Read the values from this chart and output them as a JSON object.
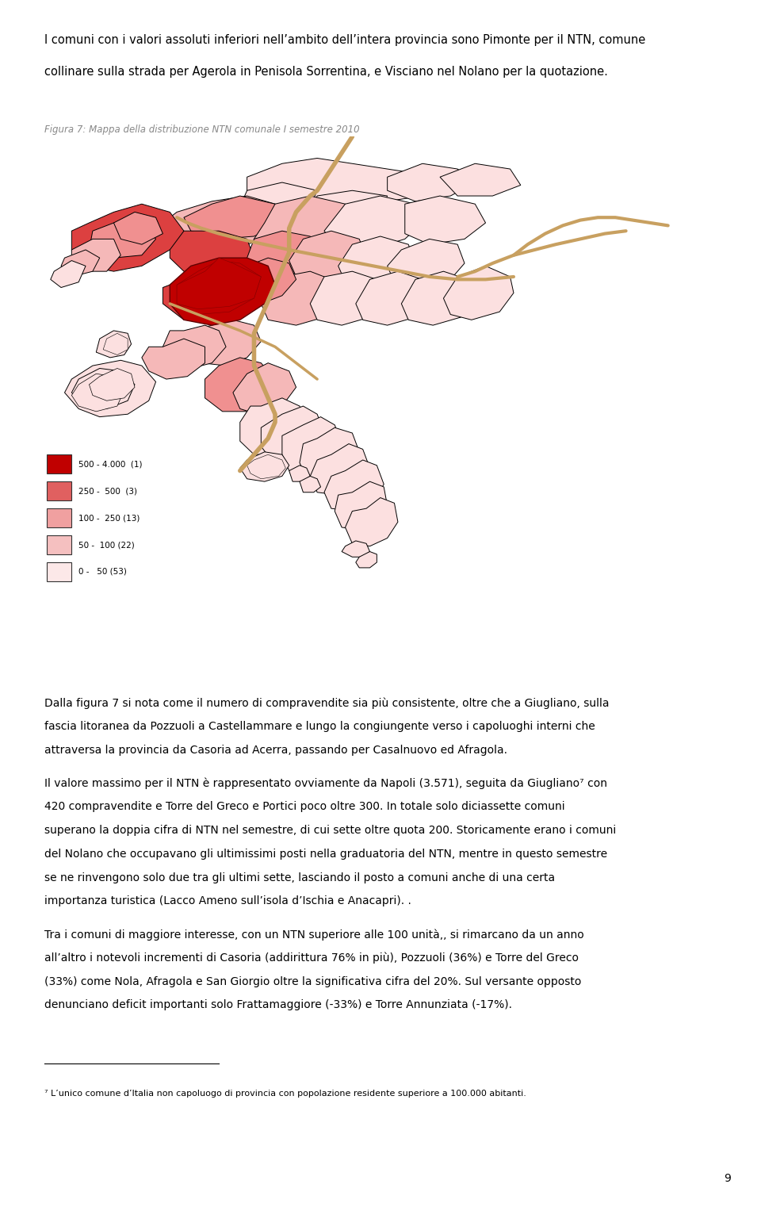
{
  "page_bg": "#ffffff",
  "line1": "I comuni con i valori assoluti inferiori nell’ambito dell’intera provincia sono Pimonte per il NTN, comune",
  "line2": "collinare sulla strada per Agerola in Penisola Sorrentina, e Visciano nel Nolano per la quotazione.",
  "figure_caption": "Figura 7: Mappa della distribuzione NTN comunale I semestre 2010",
  "legend_items": [
    {
      "range": "500 - 4.000  (1)",
      "color": "#c00000"
    },
    {
      "range": "250 -  500  (3)",
      "color": "#e06060"
    },
    {
      "range": "100 -  250 (13)",
      "color": "#f0a0a0"
    },
    {
      "range": "50 -  100 (22)",
      "color": "#f5c0c0"
    },
    {
      "range": "0 -   50 (53)",
      "color": "#fce8e8"
    }
  ],
  "p1_lines": [
    "Dalla figura 7 si nota come il numero di compravendite sia più consistente, oltre che a Giugliano, sulla",
    "fascia litoranea da Pozzuoli a Castellammare e lungo la congiungente verso i capoluoghi interni che",
    "attraversa la provincia da Casoria ad Acerra, passando per Casalnuovo ed Afragola."
  ],
  "p2_lines": [
    "Il valore massimo per il NTN è rappresentato ovviamente da Napoli (3.571), seguita da Giugliano⁷ con",
    "420 compravendite e Torre del Greco e Portici poco oltre 300. In totale solo diciassette comuni",
    "superano la doppia cifra di NTN nel semestre, di cui sette oltre quota 200. Storicamente erano i comuni",
    "del Nolano che occupavano gli ultimissimi posti nella graduatoria del NTN, mentre in questo semestre",
    "se ne rinvengono solo due tra gli ultimi sette, lasciando il posto a comuni anche di una certa",
    "importanza turistica (Lacco Ameno sull’isola d’Ischia e Anacapri). ."
  ],
  "p3_lines": [
    "Tra i comuni di maggiore interesse, con un NTN superiore alle 100 unità,, si rimarcano da un anno",
    "all’altro i notevoli incrementi di Casoria (addirittura 76% in più), Pozzuoli (36%) e Torre del Greco",
    "(33%) come Nola, Afragola e San Giorgio oltre la significativa cifra del 20%. Sul versante opposto",
    "denunciano ‪deficit‫ importanti solo Frattamaggiore (-33%) e Torre Annunziata (-17%)."
  ],
  "footnote_text": "⁷ L’unico comune d’Italia non capoluogo di provincia con popolazione residente superiore a 100.000 abitanti.",
  "page_number": "9",
  "c_darkred": "#c00000",
  "c_red": "#dc4040",
  "c_medred": "#f09090",
  "c_lightred": "#f5b8b8",
  "c_verylight": "#fce0e0",
  "road_color": "#c8a060"
}
